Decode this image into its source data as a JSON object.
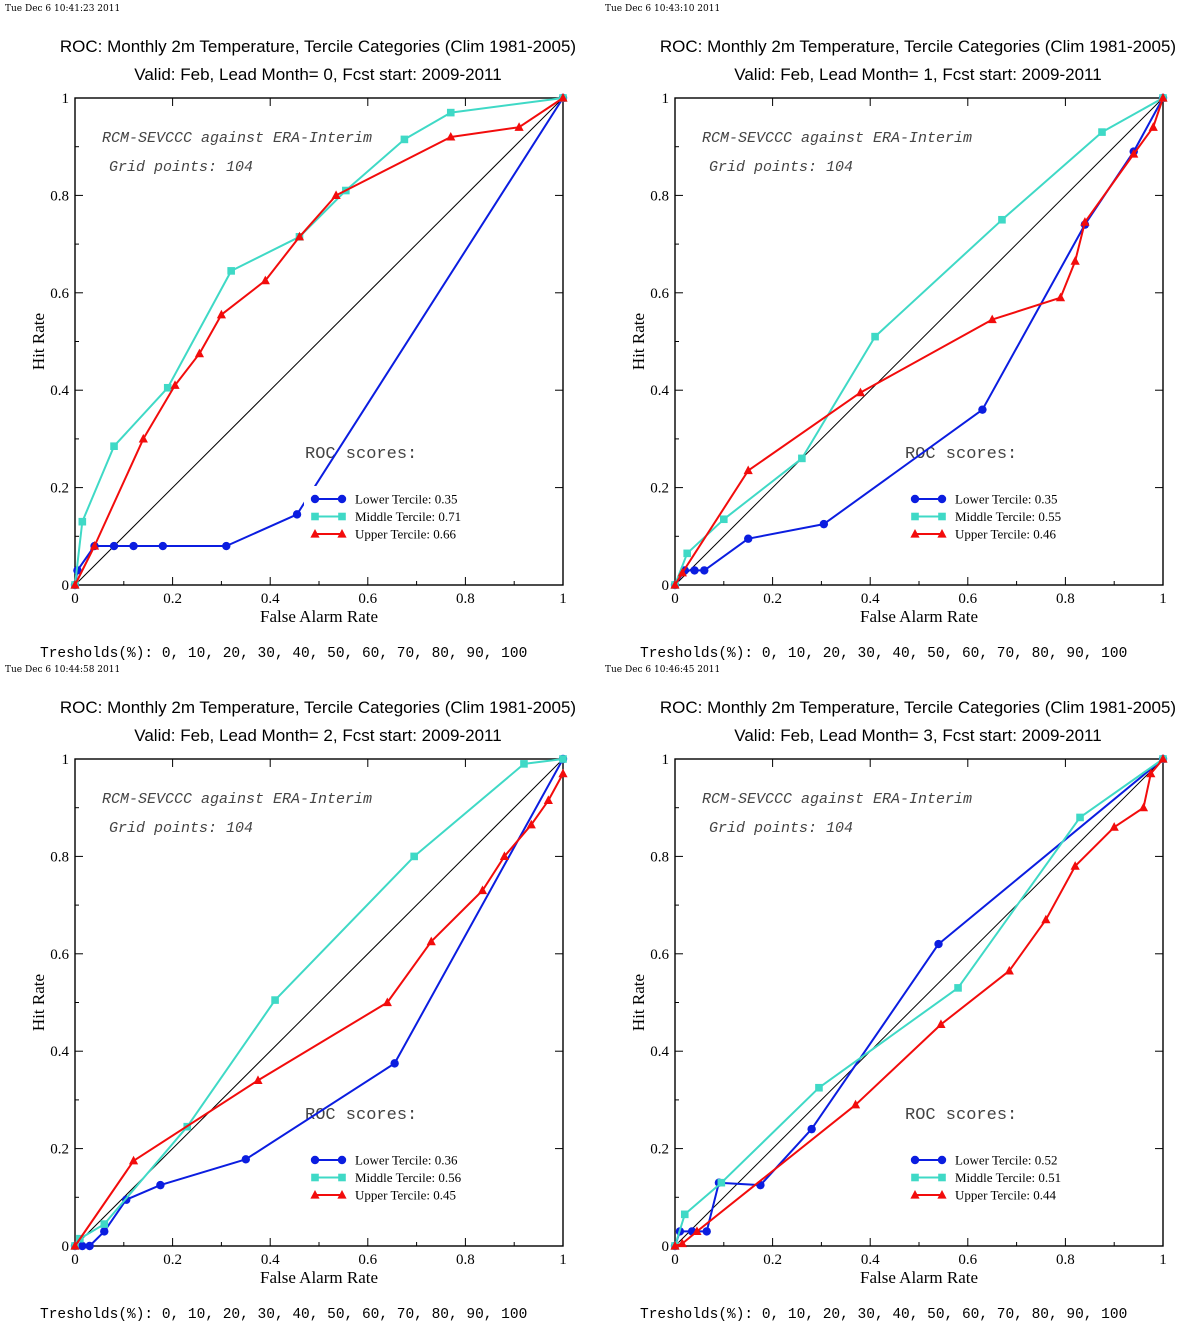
{
  "series_styles": [
    {
      "color": "#0b1de0",
      "marker": "circle"
    },
    {
      "color": "#3fd9c6",
      "marker": "square"
    },
    {
      "color": "#f20c0c",
      "marker": "triangle"
    }
  ],
  "chart_data": [
    {
      "type": "line",
      "stamp": "Tue Dec  6 10:41:23 2011",
      "title": "ROC: Monthly 2m Temperature, Tercile Categories (Clim 1981-2005)",
      "subtitle": "Valid: Feb, Lead Month= 0, Fcst start: 2009-2011",
      "xlabel": "False Alarm Rate",
      "ylabel": "Hit Rate",
      "xlim": [
        0,
        1
      ],
      "ylim": [
        0,
        1
      ],
      "xticks": [
        "0",
        "0.2",
        "0.4",
        "0.6",
        "0.8",
        "1"
      ],
      "yticks": [
        "0",
        "0.2",
        "0.4",
        "0.6",
        "0.8",
        "1"
      ],
      "note1": "RCM-SEVCCC against ERA-Interim",
      "note2": "Grid points:  104",
      "roc_label": "ROC scores:",
      "thresholds": "Tresholds(%): 0, 10, 20, 30, 40, 50, 60, 70, 80, 90, 100",
      "series": [
        {
          "label": "Lower Tercile: 0.35",
          "x": [
            0,
            0.005,
            0.04,
            0.08,
            0.12,
            0.18,
            0.31,
            0.455,
            1.0
          ],
          "y": [
            0,
            0.03,
            0.08,
            0.08,
            0.08,
            0.08,
            0.08,
            0.145,
            1.0
          ]
        },
        {
          "label": "Middle Tercile: 0.71",
          "x": [
            0,
            0.015,
            0.08,
            0.19,
            0.32,
            0.46,
            0.555,
            0.675,
            0.77,
            1.0
          ],
          "y": [
            0,
            0.13,
            0.285,
            0.405,
            0.645,
            0.715,
            0.81,
            0.915,
            0.97,
            1.0
          ]
        },
        {
          "label": "Upper Tercile: 0.66",
          "x": [
            0,
            0.04,
            0.14,
            0.205,
            0.255,
            0.3,
            0.39,
            0.46,
            0.535,
            0.77,
            0.91,
            1.0
          ],
          "y": [
            0,
            0.08,
            0.3,
            0.41,
            0.475,
            0.555,
            0.625,
            0.715,
            0.8,
            0.92,
            0.94,
            1.0
          ]
        }
      ]
    },
    {
      "type": "line",
      "stamp": "Tue Dec  6 10:43:10 2011",
      "title": "ROC: Monthly 2m Temperature, Tercile Categories (Clim 1981-2005)",
      "subtitle": "Valid: Feb, Lead Month= 1, Fcst start: 2009-2011",
      "xlabel": "False Alarm Rate",
      "ylabel": "Hit Rate",
      "xlim": [
        0,
        1
      ],
      "ylim": [
        0,
        1
      ],
      "xticks": [
        "0",
        "0.2",
        "0.4",
        "0.6",
        "0.8",
        "1"
      ],
      "yticks": [
        "0",
        "0.2",
        "0.4",
        "0.6",
        "0.8",
        "1"
      ],
      "note1": "RCM-SEVCCC against ERA-Interim",
      "note2": "Grid points:  104",
      "roc_label": "ROC scores:",
      "thresholds": "Tresholds(%): 0, 10, 20, 30, 40, 50, 60, 70, 80, 90, 100",
      "series": [
        {
          "label": "Lower Tercile: 0.35",
          "x": [
            0,
            0.02,
            0.04,
            0.06,
            0.15,
            0.305,
            0.63,
            0.84,
            0.94,
            1.0
          ],
          "y": [
            0,
            0.03,
            0.03,
            0.03,
            0.095,
            0.125,
            0.36,
            0.74,
            0.89,
            1.0
          ]
        },
        {
          "label": "Middle Tercile: 0.55",
          "x": [
            0,
            0.025,
            0.1,
            0.26,
            0.41,
            0.67,
            0.875,
            1.0
          ],
          "y": [
            0,
            0.065,
            0.135,
            0.26,
            0.51,
            0.75,
            0.93,
            1.0
          ]
        },
        {
          "label": "Upper Tercile: 0.46",
          "x": [
            0,
            0.015,
            0.15,
            0.38,
            0.65,
            0.79,
            0.82,
            0.84,
            0.94,
            0.98,
            1.0
          ],
          "y": [
            0,
            0.025,
            0.235,
            0.395,
            0.545,
            0.59,
            0.665,
            0.745,
            0.885,
            0.94,
            1.0
          ]
        }
      ]
    },
    {
      "type": "line",
      "stamp": "Tue Dec  6 10:44:58 2011",
      "title": "ROC: Monthly 2m Temperature, Tercile Categories (Clim 1981-2005)",
      "subtitle": "Valid: Feb, Lead Month= 2, Fcst start: 2009-2011",
      "xlabel": "False Alarm Rate",
      "ylabel": "Hit Rate",
      "xlim": [
        0,
        1
      ],
      "ylim": [
        0,
        1
      ],
      "xticks": [
        "0",
        "0.2",
        "0.4",
        "0.6",
        "0.8",
        "1"
      ],
      "yticks": [
        "0",
        "0.2",
        "0.4",
        "0.6",
        "0.8",
        "1"
      ],
      "note1": "RCM-SEVCCC against ERA-Interim",
      "note2": "Grid points:  104",
      "roc_label": "ROC scores:",
      "thresholds": "Tresholds(%): 0, 10, 20, 30, 40, 50, 60, 70, 80, 90, 100",
      "series": [
        {
          "label": "Lower Tercile: 0.36",
          "x": [
            0,
            0.015,
            0.03,
            0.06,
            0.105,
            0.175,
            0.35,
            0.655,
            1.0
          ],
          "y": [
            0,
            0.0,
            0.0,
            0.03,
            0.095,
            0.125,
            0.178,
            0.375,
            1.0
          ]
        },
        {
          "label": "Middle Tercile: 0.56",
          "x": [
            0,
            0.01,
            0.06,
            0.23,
            0.41,
            0.695,
            0.92,
            1.0
          ],
          "y": [
            0,
            0.015,
            0.045,
            0.245,
            0.505,
            0.8,
            0.99,
            1.0
          ]
        },
        {
          "label": "Upper Tercile: 0.45",
          "x": [
            0,
            0.12,
            0.375,
            0.64,
            0.73,
            0.835,
            0.88,
            0.935,
            0.97,
            1.0
          ],
          "y": [
            0,
            0.175,
            0.34,
            0.5,
            0.625,
            0.73,
            0.8,
            0.865,
            0.915,
            0.97
          ]
        }
      ]
    },
    {
      "type": "line",
      "stamp": "Tue Dec  6 10:46:45 2011",
      "title": "ROC: Monthly 2m Temperature, Tercile Categories (Clim 1981-2005)",
      "subtitle": "Valid: Feb, Lead Month= 3, Fcst start: 2009-2011",
      "xlabel": "False Alarm Rate",
      "ylabel": "Hit Rate",
      "xlim": [
        0,
        1
      ],
      "ylim": [
        0,
        1
      ],
      "xticks": [
        "0",
        "0.2",
        "0.4",
        "0.6",
        "0.8",
        "1"
      ],
      "yticks": [
        "0",
        "0.2",
        "0.4",
        "0.6",
        "0.8",
        "1"
      ],
      "note1": "RCM-SEVCCC against ERA-Interim",
      "note2": "Grid points:  104",
      "roc_label": "ROC scores:",
      "thresholds": "Tresholds(%): 0, 10, 20, 30, 40, 50, 60, 70, 80, 90, 100",
      "series": [
        {
          "label": "Lower Tercile: 0.52",
          "x": [
            0,
            0.01,
            0.035,
            0.065,
            0.09,
            0.175,
            0.28,
            0.54,
            1.0
          ],
          "y": [
            0,
            0.03,
            0.03,
            0.03,
            0.13,
            0.125,
            0.24,
            0.62,
            1.0
          ]
        },
        {
          "label": "Middle Tercile: 0.51",
          "x": [
            0,
            0.02,
            0.095,
            0.295,
            0.58,
            0.83,
            1.0
          ],
          "y": [
            0,
            0.065,
            0.13,
            0.325,
            0.53,
            0.88,
            1.0
          ]
        },
        {
          "label": "Upper Tercile: 0.44",
          "x": [
            0,
            0.015,
            0.045,
            0.37,
            0.545,
            0.685,
            0.76,
            0.82,
            0.9,
            0.96,
            0.975,
            1.0
          ],
          "y": [
            0,
            0.005,
            0.03,
            0.29,
            0.455,
            0.565,
            0.67,
            0.78,
            0.86,
            0.9,
            0.97,
            1.0
          ]
        }
      ]
    }
  ]
}
